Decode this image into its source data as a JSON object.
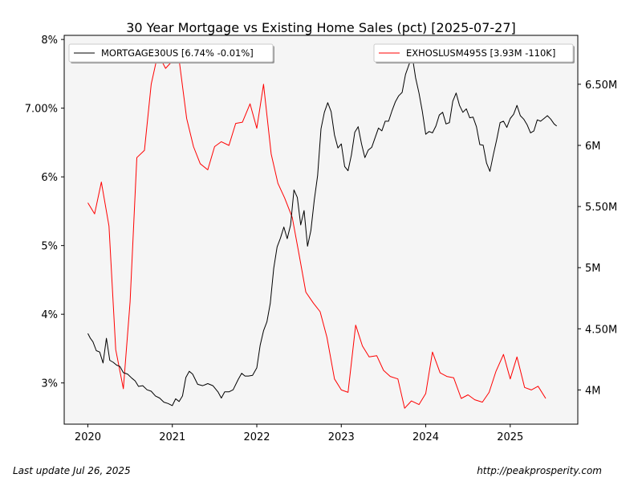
{
  "chart_data": {
    "type": "line",
    "title": "30 Year Mortgage vs Existing Home Sales (pct) [2025-07-27]",
    "x_ticks": [
      "2020",
      "2021",
      "2022",
      "2023",
      "2024",
      "2025"
    ],
    "xlim": [
      2019.72,
      2025.8
    ],
    "y_left": {
      "ticks": [
        3,
        4,
        5,
        6,
        7,
        8
      ],
      "tick_labels": [
        "3%",
        "4%",
        "5%",
        "6%",
        "7.00%",
        "8%"
      ],
      "lim": [
        2.4,
        8.06
      ]
    },
    "y_right": {
      "ticks": [
        4.0,
        4.5,
        5.0,
        5.5,
        6.0,
        6.5
      ],
      "tick_labels": [
        "4M",
        "4.50M",
        "5M",
        "5.50M",
        "6M",
        "6.50M"
      ],
      "lim": [
        3.72,
        6.9
      ]
    },
    "grid": false,
    "background": "#f5f5f5",
    "series": [
      {
        "name": "MORTGAGE30US [6.74% -0.01%]",
        "axis": "left",
        "color": "#000000",
        "points": [
          [
            2020.0,
            3.72
          ],
          [
            2020.03,
            3.65
          ],
          [
            2020.06,
            3.6
          ],
          [
            2020.1,
            3.47
          ],
          [
            2020.14,
            3.45
          ],
          [
            2020.18,
            3.29
          ],
          [
            2020.22,
            3.65
          ],
          [
            2020.26,
            3.33
          ],
          [
            2020.3,
            3.3
          ],
          [
            2020.34,
            3.26
          ],
          [
            2020.38,
            3.24
          ],
          [
            2020.42,
            3.15
          ],
          [
            2020.47,
            3.13
          ],
          [
            2020.52,
            3.07
          ],
          [
            2020.56,
            3.03
          ],
          [
            2020.6,
            2.95
          ],
          [
            2020.65,
            2.96
          ],
          [
            2020.7,
            2.9
          ],
          [
            2020.75,
            2.88
          ],
          [
            2020.8,
            2.81
          ],
          [
            2020.85,
            2.78
          ],
          [
            2020.9,
            2.72
          ],
          [
            2020.95,
            2.7
          ],
          [
            2021.0,
            2.67
          ],
          [
            2021.04,
            2.77
          ],
          [
            2021.08,
            2.73
          ],
          [
            2021.12,
            2.81
          ],
          [
            2021.16,
            3.08
          ],
          [
            2021.2,
            3.17
          ],
          [
            2021.24,
            3.13
          ],
          [
            2021.3,
            2.98
          ],
          [
            2021.36,
            2.96
          ],
          [
            2021.42,
            2.99
          ],
          [
            2021.48,
            2.96
          ],
          [
            2021.54,
            2.87
          ],
          [
            2021.58,
            2.78
          ],
          [
            2021.62,
            2.87
          ],
          [
            2021.67,
            2.87
          ],
          [
            2021.72,
            2.9
          ],
          [
            2021.78,
            3.05
          ],
          [
            2021.82,
            3.14
          ],
          [
            2021.86,
            3.1
          ],
          [
            2021.9,
            3.1
          ],
          [
            2021.95,
            3.11
          ],
          [
            2022.0,
            3.22
          ],
          [
            2022.04,
            3.55
          ],
          [
            2022.08,
            3.76
          ],
          [
            2022.12,
            3.89
          ],
          [
            2022.16,
            4.16
          ],
          [
            2022.2,
            4.67
          ],
          [
            2022.24,
            4.98
          ],
          [
            2022.28,
            5.11
          ],
          [
            2022.32,
            5.27
          ],
          [
            2022.36,
            5.1
          ],
          [
            2022.4,
            5.3
          ],
          [
            2022.44,
            5.81
          ],
          [
            2022.48,
            5.7
          ],
          [
            2022.52,
            5.3
          ],
          [
            2022.56,
            5.51
          ],
          [
            2022.6,
            4.99
          ],
          [
            2022.64,
            5.22
          ],
          [
            2022.68,
            5.66
          ],
          [
            2022.72,
            6.02
          ],
          [
            2022.76,
            6.7
          ],
          [
            2022.8,
            6.94
          ],
          [
            2022.84,
            7.08
          ],
          [
            2022.88,
            6.95
          ],
          [
            2022.92,
            6.61
          ],
          [
            2022.96,
            6.42
          ],
          [
            2023.0,
            6.48
          ],
          [
            2023.04,
            6.15
          ],
          [
            2023.08,
            6.09
          ],
          [
            2023.12,
            6.32
          ],
          [
            2023.16,
            6.65
          ],
          [
            2023.2,
            6.73
          ],
          [
            2023.24,
            6.48
          ],
          [
            2023.28,
            6.28
          ],
          [
            2023.32,
            6.39
          ],
          [
            2023.36,
            6.43
          ],
          [
            2023.4,
            6.57
          ],
          [
            2023.44,
            6.71
          ],
          [
            2023.48,
            6.67
          ],
          [
            2023.52,
            6.81
          ],
          [
            2023.56,
            6.81
          ],
          [
            2023.6,
            6.96
          ],
          [
            2023.64,
            7.09
          ],
          [
            2023.68,
            7.18
          ],
          [
            2023.72,
            7.23
          ],
          [
            2023.76,
            7.49
          ],
          [
            2023.8,
            7.63
          ],
          [
            2023.84,
            7.76
          ],
          [
            2023.88,
            7.44
          ],
          [
            2023.92,
            7.22
          ],
          [
            2023.96,
            6.95
          ],
          [
            2024.0,
            6.62
          ],
          [
            2024.04,
            6.66
          ],
          [
            2024.08,
            6.64
          ],
          [
            2024.12,
            6.74
          ],
          [
            2024.16,
            6.9
          ],
          [
            2024.2,
            6.94
          ],
          [
            2024.24,
            6.77
          ],
          [
            2024.28,
            6.79
          ],
          [
            2024.32,
            7.1
          ],
          [
            2024.36,
            7.22
          ],
          [
            2024.4,
            7.04
          ],
          [
            2024.44,
            6.94
          ],
          [
            2024.48,
            6.99
          ],
          [
            2024.52,
            6.86
          ],
          [
            2024.56,
            6.87
          ],
          [
            2024.6,
            6.73
          ],
          [
            2024.64,
            6.47
          ],
          [
            2024.68,
            6.46
          ],
          [
            2024.72,
            6.2
          ],
          [
            2024.76,
            6.08
          ],
          [
            2024.8,
            6.32
          ],
          [
            2024.84,
            6.54
          ],
          [
            2024.88,
            6.79
          ],
          [
            2024.92,
            6.81
          ],
          [
            2024.96,
            6.72
          ],
          [
            2025.0,
            6.85
          ],
          [
            2025.04,
            6.91
          ],
          [
            2025.08,
            7.04
          ],
          [
            2025.12,
            6.89
          ],
          [
            2025.16,
            6.84
          ],
          [
            2025.2,
            6.76
          ],
          [
            2025.24,
            6.64
          ],
          [
            2025.28,
            6.67
          ],
          [
            2025.32,
            6.83
          ],
          [
            2025.36,
            6.81
          ],
          [
            2025.4,
            6.85
          ],
          [
            2025.44,
            6.89
          ],
          [
            2025.48,
            6.84
          ],
          [
            2025.52,
            6.77
          ],
          [
            2025.55,
            6.74
          ]
        ]
      },
      {
        "name": "EXHOSLUSM495S [3.93M -110K]",
        "axis": "right",
        "color": "#ff0000",
        "points": [
          [
            2020.0,
            5.53
          ],
          [
            2020.08,
            5.44
          ],
          [
            2020.16,
            5.7
          ],
          [
            2020.25,
            5.34
          ],
          [
            2020.33,
            4.33
          ],
          [
            2020.42,
            4.01
          ],
          [
            2020.5,
            4.72
          ],
          [
            2020.58,
            5.9
          ],
          [
            2020.67,
            5.96
          ],
          [
            2020.75,
            6.5
          ],
          [
            2020.83,
            6.75
          ],
          [
            2020.92,
            6.63
          ],
          [
            2021.0,
            6.69
          ],
          [
            2021.08,
            6.7
          ],
          [
            2021.17,
            6.22
          ],
          [
            2021.25,
            5.99
          ],
          [
            2021.33,
            5.85
          ],
          [
            2021.42,
            5.8
          ],
          [
            2021.5,
            5.99
          ],
          [
            2021.58,
            6.03
          ],
          [
            2021.67,
            6.0
          ],
          [
            2021.75,
            6.18
          ],
          [
            2021.83,
            6.19
          ],
          [
            2021.92,
            6.34
          ],
          [
            2022.0,
            6.14
          ],
          [
            2022.08,
            6.5
          ],
          [
            2022.17,
            5.93
          ],
          [
            2022.25,
            5.69
          ],
          [
            2022.33,
            5.57
          ],
          [
            2022.42,
            5.41
          ],
          [
            2022.5,
            5.11
          ],
          [
            2022.58,
            4.8
          ],
          [
            2022.67,
            4.71
          ],
          [
            2022.75,
            4.64
          ],
          [
            2022.83,
            4.43
          ],
          [
            2022.92,
            4.09
          ],
          [
            2023.0,
            4.0
          ],
          [
            2023.08,
            3.98
          ],
          [
            2023.17,
            4.53
          ],
          [
            2023.25,
            4.36
          ],
          [
            2023.33,
            4.27
          ],
          [
            2023.42,
            4.28
          ],
          [
            2023.5,
            4.16
          ],
          [
            2023.58,
            4.11
          ],
          [
            2023.67,
            4.09
          ],
          [
            2023.75,
            3.85
          ],
          [
            2023.83,
            3.91
          ],
          [
            2023.92,
            3.88
          ],
          [
            2024.0,
            3.97
          ],
          [
            2024.08,
            4.31
          ],
          [
            2024.17,
            4.14
          ],
          [
            2024.25,
            4.11
          ],
          [
            2024.33,
            4.1
          ],
          [
            2024.42,
            3.93
          ],
          [
            2024.5,
            3.96
          ],
          [
            2024.58,
            3.92
          ],
          [
            2024.67,
            3.9
          ],
          [
            2024.75,
            3.98
          ],
          [
            2024.83,
            4.15
          ],
          [
            2024.92,
            4.29
          ],
          [
            2025.0,
            4.09
          ],
          [
            2025.08,
            4.27
          ],
          [
            2025.17,
            4.02
          ],
          [
            2025.25,
            4.0
          ],
          [
            2025.33,
            4.03
          ],
          [
            2025.42,
            3.93
          ]
        ]
      }
    ]
  },
  "footer": {
    "left": "Last update Jul 26, 2025",
    "right": "http://peakprosperity.com"
  }
}
